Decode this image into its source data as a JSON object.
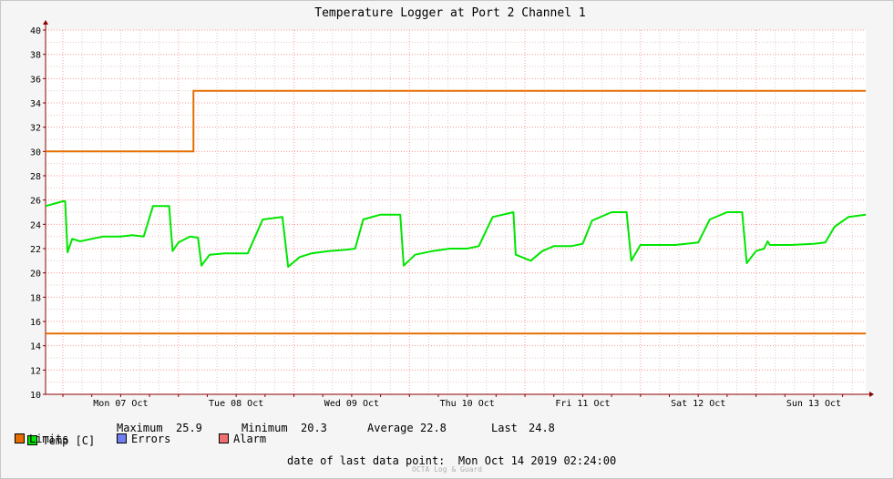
{
  "chart_data": {
    "type": "line",
    "title": "Temperature Logger at Port 2 Channel 1",
    "ylim": [
      10,
      40
    ],
    "yticks": [
      10,
      12,
      14,
      16,
      18,
      20,
      22,
      24,
      26,
      28,
      30,
      32,
      34,
      36,
      38,
      40
    ],
    "xlim_days": [
      6.85,
      13.95
    ],
    "xtick_labels": [
      "Mon 07 Oct",
      "Tue 08 Oct",
      "Wed 09 Oct",
      "Thu 10 Oct",
      "Fri 11 Oct",
      "Sat 12 Oct",
      "Sun 13 Oct"
    ],
    "grid": true,
    "series": [
      {
        "name": "Temp [C]",
        "color": "#00e600",
        "points": [
          [
            6.85,
            25.5
          ],
          [
            7.0,
            25.9
          ],
          [
            7.02,
            25.9
          ],
          [
            7.04,
            21.7
          ],
          [
            7.08,
            22.8
          ],
          [
            7.15,
            22.6
          ],
          [
            7.25,
            22.8
          ],
          [
            7.35,
            23.0
          ],
          [
            7.5,
            23.0
          ],
          [
            7.6,
            23.1
          ],
          [
            7.7,
            23.0
          ],
          [
            7.78,
            25.5
          ],
          [
            7.92,
            25.5
          ],
          [
            7.95,
            21.8
          ],
          [
            8.0,
            22.5
          ],
          [
            8.1,
            23.0
          ],
          [
            8.17,
            22.9
          ],
          [
            8.2,
            20.6
          ],
          [
            8.27,
            21.5
          ],
          [
            8.4,
            21.6
          ],
          [
            8.55,
            21.6
          ],
          [
            8.6,
            21.6
          ],
          [
            8.73,
            24.4
          ],
          [
            8.9,
            24.6
          ],
          [
            8.95,
            20.5
          ],
          [
            9.05,
            21.3
          ],
          [
            9.15,
            21.6
          ],
          [
            9.3,
            21.8
          ],
          [
            9.45,
            21.9
          ],
          [
            9.53,
            22.0
          ],
          [
            9.6,
            24.4
          ],
          [
            9.75,
            24.8
          ],
          [
            9.92,
            24.8
          ],
          [
            9.95,
            20.6
          ],
          [
            10.05,
            21.5
          ],
          [
            10.2,
            21.8
          ],
          [
            10.35,
            22.0
          ],
          [
            10.5,
            22.0
          ],
          [
            10.6,
            22.2
          ],
          [
            10.72,
            24.6
          ],
          [
            10.9,
            25.0
          ],
          [
            10.92,
            21.5
          ],
          [
            11.05,
            21.0
          ],
          [
            11.15,
            21.8
          ],
          [
            11.25,
            22.2
          ],
          [
            11.4,
            22.2
          ],
          [
            11.5,
            22.4
          ],
          [
            11.58,
            24.3
          ],
          [
            11.75,
            25.0
          ],
          [
            11.88,
            25.0
          ],
          [
            11.92,
            21.0
          ],
          [
            12.0,
            22.3
          ],
          [
            12.15,
            22.3
          ],
          [
            12.3,
            22.3
          ],
          [
            12.5,
            22.5
          ],
          [
            12.6,
            24.4
          ],
          [
            12.75,
            25.0
          ],
          [
            12.88,
            25.0
          ],
          [
            12.92,
            20.8
          ],
          [
            13.0,
            21.8
          ],
          [
            13.07,
            22.0
          ],
          [
            13.1,
            22.6
          ],
          [
            13.12,
            22.3
          ],
          [
            13.3,
            22.3
          ],
          [
            13.5,
            22.4
          ],
          [
            13.6,
            22.5
          ],
          [
            13.68,
            23.8
          ],
          [
            13.8,
            24.6
          ],
          [
            13.95,
            24.8
          ]
        ]
      },
      {
        "name": "Limits",
        "color": "#e66e00",
        "lines": [
          {
            "points": [
              [
                6.85,
                30
              ],
              [
                8.13,
                30
              ],
              [
                8.13,
                35
              ],
              [
                13.95,
                35
              ]
            ]
          },
          {
            "points": [
              [
                6.85,
                15
              ],
              [
                13.95,
                15
              ]
            ]
          }
        ]
      }
    ]
  },
  "legend": {
    "temp_label": "Temp [C]",
    "temp_color": "#00e600",
    "limits_label": "Limits",
    "limits_color": "#e66e00",
    "errors_label": "Errors",
    "errors_color": "#6f7ff0",
    "alarm_label": "Alarm",
    "alarm_color": "#f07070"
  },
  "stats": {
    "maximum_label": "Maximum",
    "maximum_value": "25.9",
    "minimum_label": "Minimum",
    "minimum_value": "20.3",
    "average_label": "Average",
    "average_value": "22.8",
    "last_label": "Last",
    "last_value": "24.8"
  },
  "footer": {
    "last_point_label": "date of last data point:",
    "last_point_value": "Mon Oct 14 2019 02:24:00",
    "brand": "OCTA Log & Guard"
  }
}
